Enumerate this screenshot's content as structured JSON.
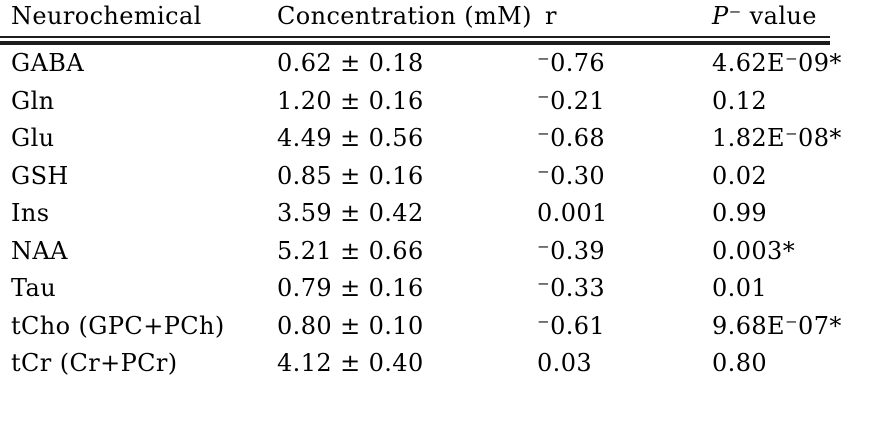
{
  "table": {
    "headers": {
      "neurochemical": "Neurochemical",
      "concentration": "Concentration (mM)",
      "r": "r",
      "p_italic": "P",
      "p_rest": "⁻ value"
    },
    "rows": [
      {
        "neurochemical": "GABA",
        "concentration": "0.62 ± 0.18",
        "r": "⁻0.76",
        "p_value": "4.62E⁻09*"
      },
      {
        "neurochemical": "Gln",
        "concentration": "1.20 ± 0.16",
        "r": "⁻0.21",
        "p_value": "0.12"
      },
      {
        "neurochemical": "Glu",
        "concentration": "4.49 ± 0.56",
        "r": "⁻0.68",
        "p_value": "1.82E⁻08*"
      },
      {
        "neurochemical": "GSH",
        "concentration": "0.85 ± 0.16",
        "r": "⁻0.30",
        "p_value": "0.02"
      },
      {
        "neurochemical": "Ins",
        "concentration": "3.59 ± 0.42",
        "r": "0.001",
        "p_value": "0.99"
      },
      {
        "neurochemical": "NAA",
        "concentration": "5.21 ± 0.66",
        "r": "⁻0.39",
        "p_value": "0.003*"
      },
      {
        "neurochemical": "Tau",
        "concentration": "0.79 ± 0.16",
        "r": "⁻0.33",
        "p_value": "0.01"
      },
      {
        "neurochemical": "tCho (GPC+PCh)",
        "concentration": "0.80 ± 0.10",
        "r": "⁻0.61",
        "p_value": "9.68E⁻07*"
      },
      {
        "neurochemical": "tCr (Cr+PCr)",
        "concentration": "4.12 ± 0.40",
        "r": "0.03",
        "p_value": "0.80"
      }
    ],
    "colors": {
      "text": "#000000",
      "rule": "#1d1d1d",
      "background": "#ffffff"
    }
  }
}
